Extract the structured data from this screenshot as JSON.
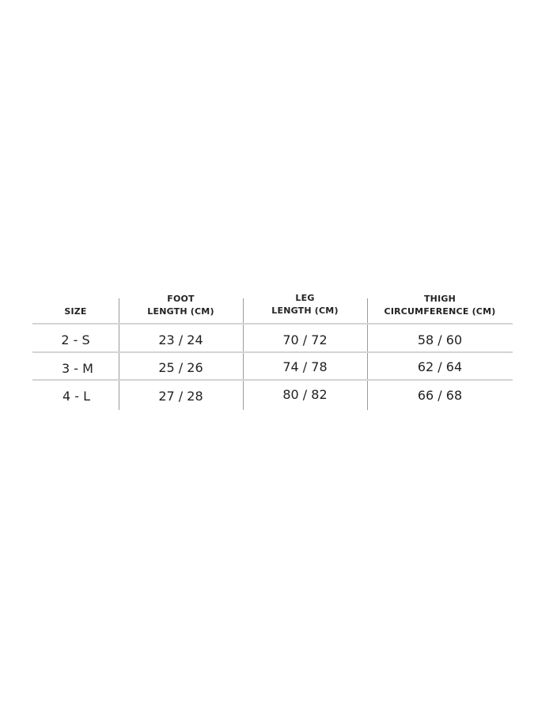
{
  "table": {
    "headers": [
      {
        "line1": "",
        "line2": "SIZE"
      },
      {
        "line1": "FOOT",
        "line2": "LENGTH (CM)"
      },
      {
        "line1": "LEG",
        "line2": "LENGTH (CM)"
      },
      {
        "line1": "THIGH",
        "line2": "CIRCUMFERENCE (CM)"
      }
    ],
    "rows": [
      [
        "2 - S",
        "23 / 24",
        "70 / 72",
        "58 / 60"
      ],
      [
        "3 - M",
        "25 / 26",
        "74 / 78",
        "62 / 64"
      ],
      [
        "4 - L",
        "27 / 28",
        "80 / 82",
        "66 / 68"
      ]
    ]
  }
}
